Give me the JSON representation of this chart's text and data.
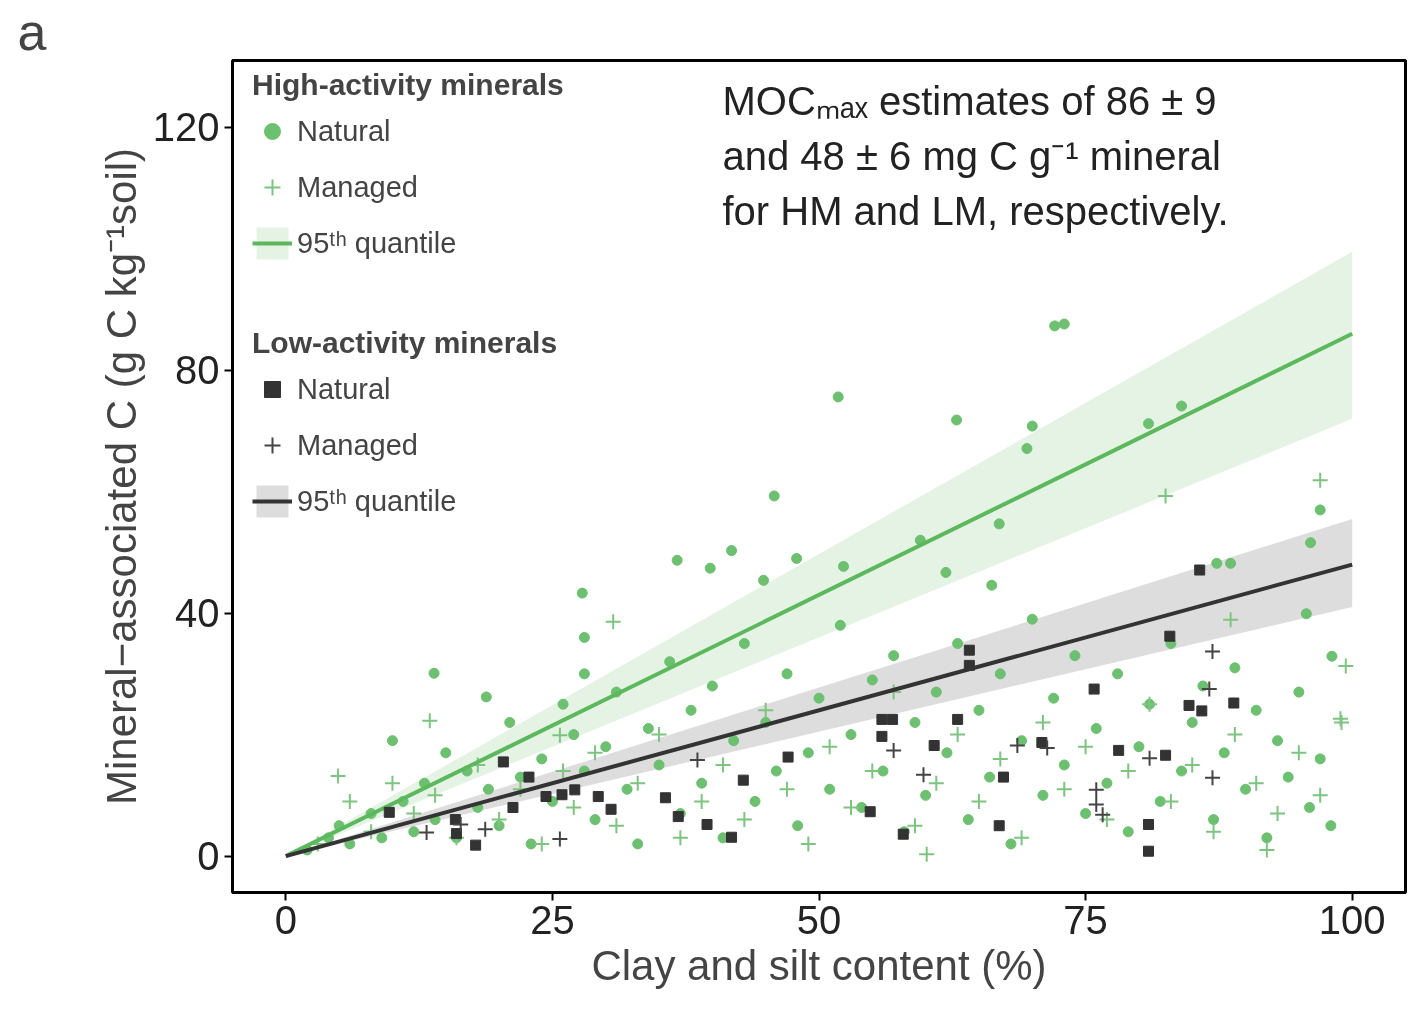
{
  "chart_data": {
    "type": "scatter",
    "xlabel": "Clay and silt content (%)",
    "ylabel": "Mineral−associated C (g C kg⁻¹soil)",
    "legend_title": [
      "High-activity minerals",
      "Low-activity minerals"
    ],
    "annotations": [
      "a",
      "MOCₘₐₓ estimates of 86 ± 9 and 48 ± 6 mg C g⁻¹ mineral for HM and LM, respectively."
    ],
    "xlim": [
      -5,
      105
    ],
    "ylim": [
      -6,
      131
    ],
    "xticks": [
      0,
      25,
      50,
      75,
      100
    ],
    "yticks": [
      0,
      40,
      80,
      120
    ],
    "grid": false,
    "legend": "top left",
    "series": [
      {
        "name": "Natural",
        "marker": "circle",
        "color": "#6cc070",
        "x": [
          13.9,
          18.8,
          51.8,
          62.9,
          72.1,
          73,
          70,
          80.9,
          84,
          45.8,
          27.8,
          36.7,
          39.8,
          41.8,
          47.9,
          44.8,
          52.3,
          97,
          96.1,
          95.7,
          98.1,
          69.5,
          66.9,
          66.2,
          87.3,
          88.6,
          59.5,
          61.9,
          2,
          4,
          5,
          6,
          8,
          9,
          10,
          11,
          12,
          13,
          14,
          15,
          16,
          17,
          18,
          19,
          20,
          21,
          22,
          23,
          24,
          25,
          26,
          27,
          28,
          28,
          28,
          29,
          30,
          31,
          32,
          33,
          34,
          35,
          36,
          37,
          38,
          39,
          40,
          41,
          42,
          43,
          44,
          45,
          46,
          47,
          48,
          49,
          50,
          51,
          52,
          53,
          54,
          55,
          56,
          57,
          58,
          59,
          60,
          61,
          62,
          63,
          64,
          65,
          66,
          67,
          68,
          69,
          70,
          71,
          72,
          73,
          74,
          75,
          76,
          77,
          78,
          79,
          80,
          81,
          82,
          83,
          84,
          85,
          86,
          87,
          88,
          89,
          90,
          91,
          92,
          93,
          94,
          95,
          96,
          97,
          98
        ],
        "values": [
          30.1,
          26.2,
          75.6,
          71.8,
          87.3,
          87.6,
          70.8,
          71.2,
          74.1,
          59.3,
          43.3,
          48.7,
          47.4,
          50.3,
          49,
          45.4,
          47.7,
          57,
          51.6,
          39.9,
          32.9,
          67.1,
          54.7,
          44.6,
          48.2,
          48.2,
          52,
          46.7,
          1,
          3,
          5,
          2,
          7,
          3,
          19,
          9,
          4,
          12,
          6,
          17,
          3,
          14,
          8,
          11,
          5,
          22,
          13,
          2,
          16,
          9,
          25,
          20,
          30,
          14,
          36,
          6,
          18,
          27,
          11,
          2,
          21,
          15,
          32,
          7,
          24,
          12,
          28,
          3,
          19,
          35,
          9,
          22,
          14,
          30,
          5,
          17,
          26,
          11,
          38,
          20,
          8,
          29,
          14,
          33,
          4,
          22,
          10,
          27,
          17,
          35,
          6,
          24,
          13,
          30,
          2,
          19,
          39,
          10,
          26,
          15,
          33,
          7,
          21,
          12,
          30,
          4,
          18,
          25,
          9,
          35,
          14,
          22,
          28,
          6,
          17,
          31,
          11,
          24,
          3,
          19,
          13,
          27,
          8,
          16,
          5
        ]
      },
      {
        "name": "Managed",
        "marker": "cross",
        "color": "#7cc47f",
        "x": [
          97,
          82.5,
          30.7,
          88.6,
          99.4,
          98.9,
          92,
          60.1,
          4.9,
          13.5,
          25.7,
          3,
          6,
          8,
          10,
          12,
          14,
          16,
          18,
          20,
          22,
          24,
          26,
          27,
          29,
          31,
          33,
          35,
          37,
          39,
          41,
          43,
          45,
          47,
          49,
          51,
          53,
          55,
          57,
          59,
          61,
          63,
          65,
          67,
          69,
          71,
          73,
          75,
          77,
          79,
          81,
          83,
          85,
          87,
          89,
          91,
          93,
          95,
          97,
          99
        ],
        "values": [
          61.9,
          59.3,
          38.6,
          38.9,
          31.3,
          22.6,
          1,
          0.3,
          13.2,
          22.3,
          19.9,
          2,
          9,
          4,
          12,
          7,
          10,
          3,
          15,
          6,
          11,
          2,
          14,
          8,
          17,
          5,
          12,
          20,
          3,
          9,
          15,
          6,
          24,
          11,
          2,
          18,
          8,
          14,
          27,
          5,
          12,
          20,
          9,
          16,
          3,
          22,
          11,
          18,
          6,
          14,
          25,
          9,
          15,
          4,
          20,
          12,
          7,
          17,
          10,
          22
        ]
      },
      {
        "name": "95ᵗʰ quantile",
        "type": "line",
        "color": "#5cb85c",
        "x": [
          0,
          100
        ],
        "values": [
          0,
          86
        ],
        "lower": [
          0,
          72
        ],
        "upper": [
          0,
          99.5
        ]
      },
      {
        "name": "Natural",
        "marker": "square",
        "color": "#333333",
        "x": [
          9.7,
          20.4,
          22.8,
          21.3,
          16,
          17.8,
          15.9,
          24.4,
          25.9,
          27.1,
          29.3,
          30.5,
          36.8,
          39.5,
          41.8,
          42.9,
          35.6,
          47.1,
          54.8,
          55.9,
          56.9,
          55.9,
          57.9,
          63,
          64.1,
          64.1,
          67.3,
          66.9,
          70.9,
          75.8,
          80.9,
          82.9,
          84.7,
          85.9,
          85.7,
          88.9,
          82.5,
          80.9,
          78.1,
          60.8
        ],
        "values": [
          7.2,
          15.5,
          13,
          8,
          3.7,
          1.8,
          6,
          9.8,
          10.1,
          10.9,
          9.8,
          7.7,
          6.5,
          5.2,
          3.1,
          12.5,
          9.6,
          16.3,
          7.3,
          22.5,
          22.5,
          19.7,
          3.6,
          22.5,
          31.4,
          33.9,
          13,
          5,
          18.7,
          27.5,
          5.2,
          36.2,
          24.8,
          23.9,
          47.1,
          25.2,
          16.6,
          0.8,
          17.4,
          18.2
        ]
      },
      {
        "name": "Managed",
        "marker": "cross",
        "color": "#444444",
        "x": [
          13.2,
          16.4,
          18.7,
          25.7,
          38.6,
          59.8,
          68.6,
          71.4,
          76,
          76,
          76.6,
          81,
          86.6,
          86.9,
          86.9,
          57
        ],
        "values": [
          3.9,
          5.2,
          4.4,
          2.8,
          15.8,
          13.4,
          18.2,
          17.8,
          10.9,
          8.5,
          6.8,
          16.1,
          27.5,
          12.9,
          33.7,
          17.4
        ]
      },
      {
        "name": "95ᵗʰ quantile",
        "type": "line",
        "color": "#333333",
        "x": [
          0,
          100
        ],
        "values": [
          0,
          48
        ],
        "lower": [
          0,
          41
        ],
        "upper": [
          0,
          55.5
        ]
      }
    ]
  }
}
